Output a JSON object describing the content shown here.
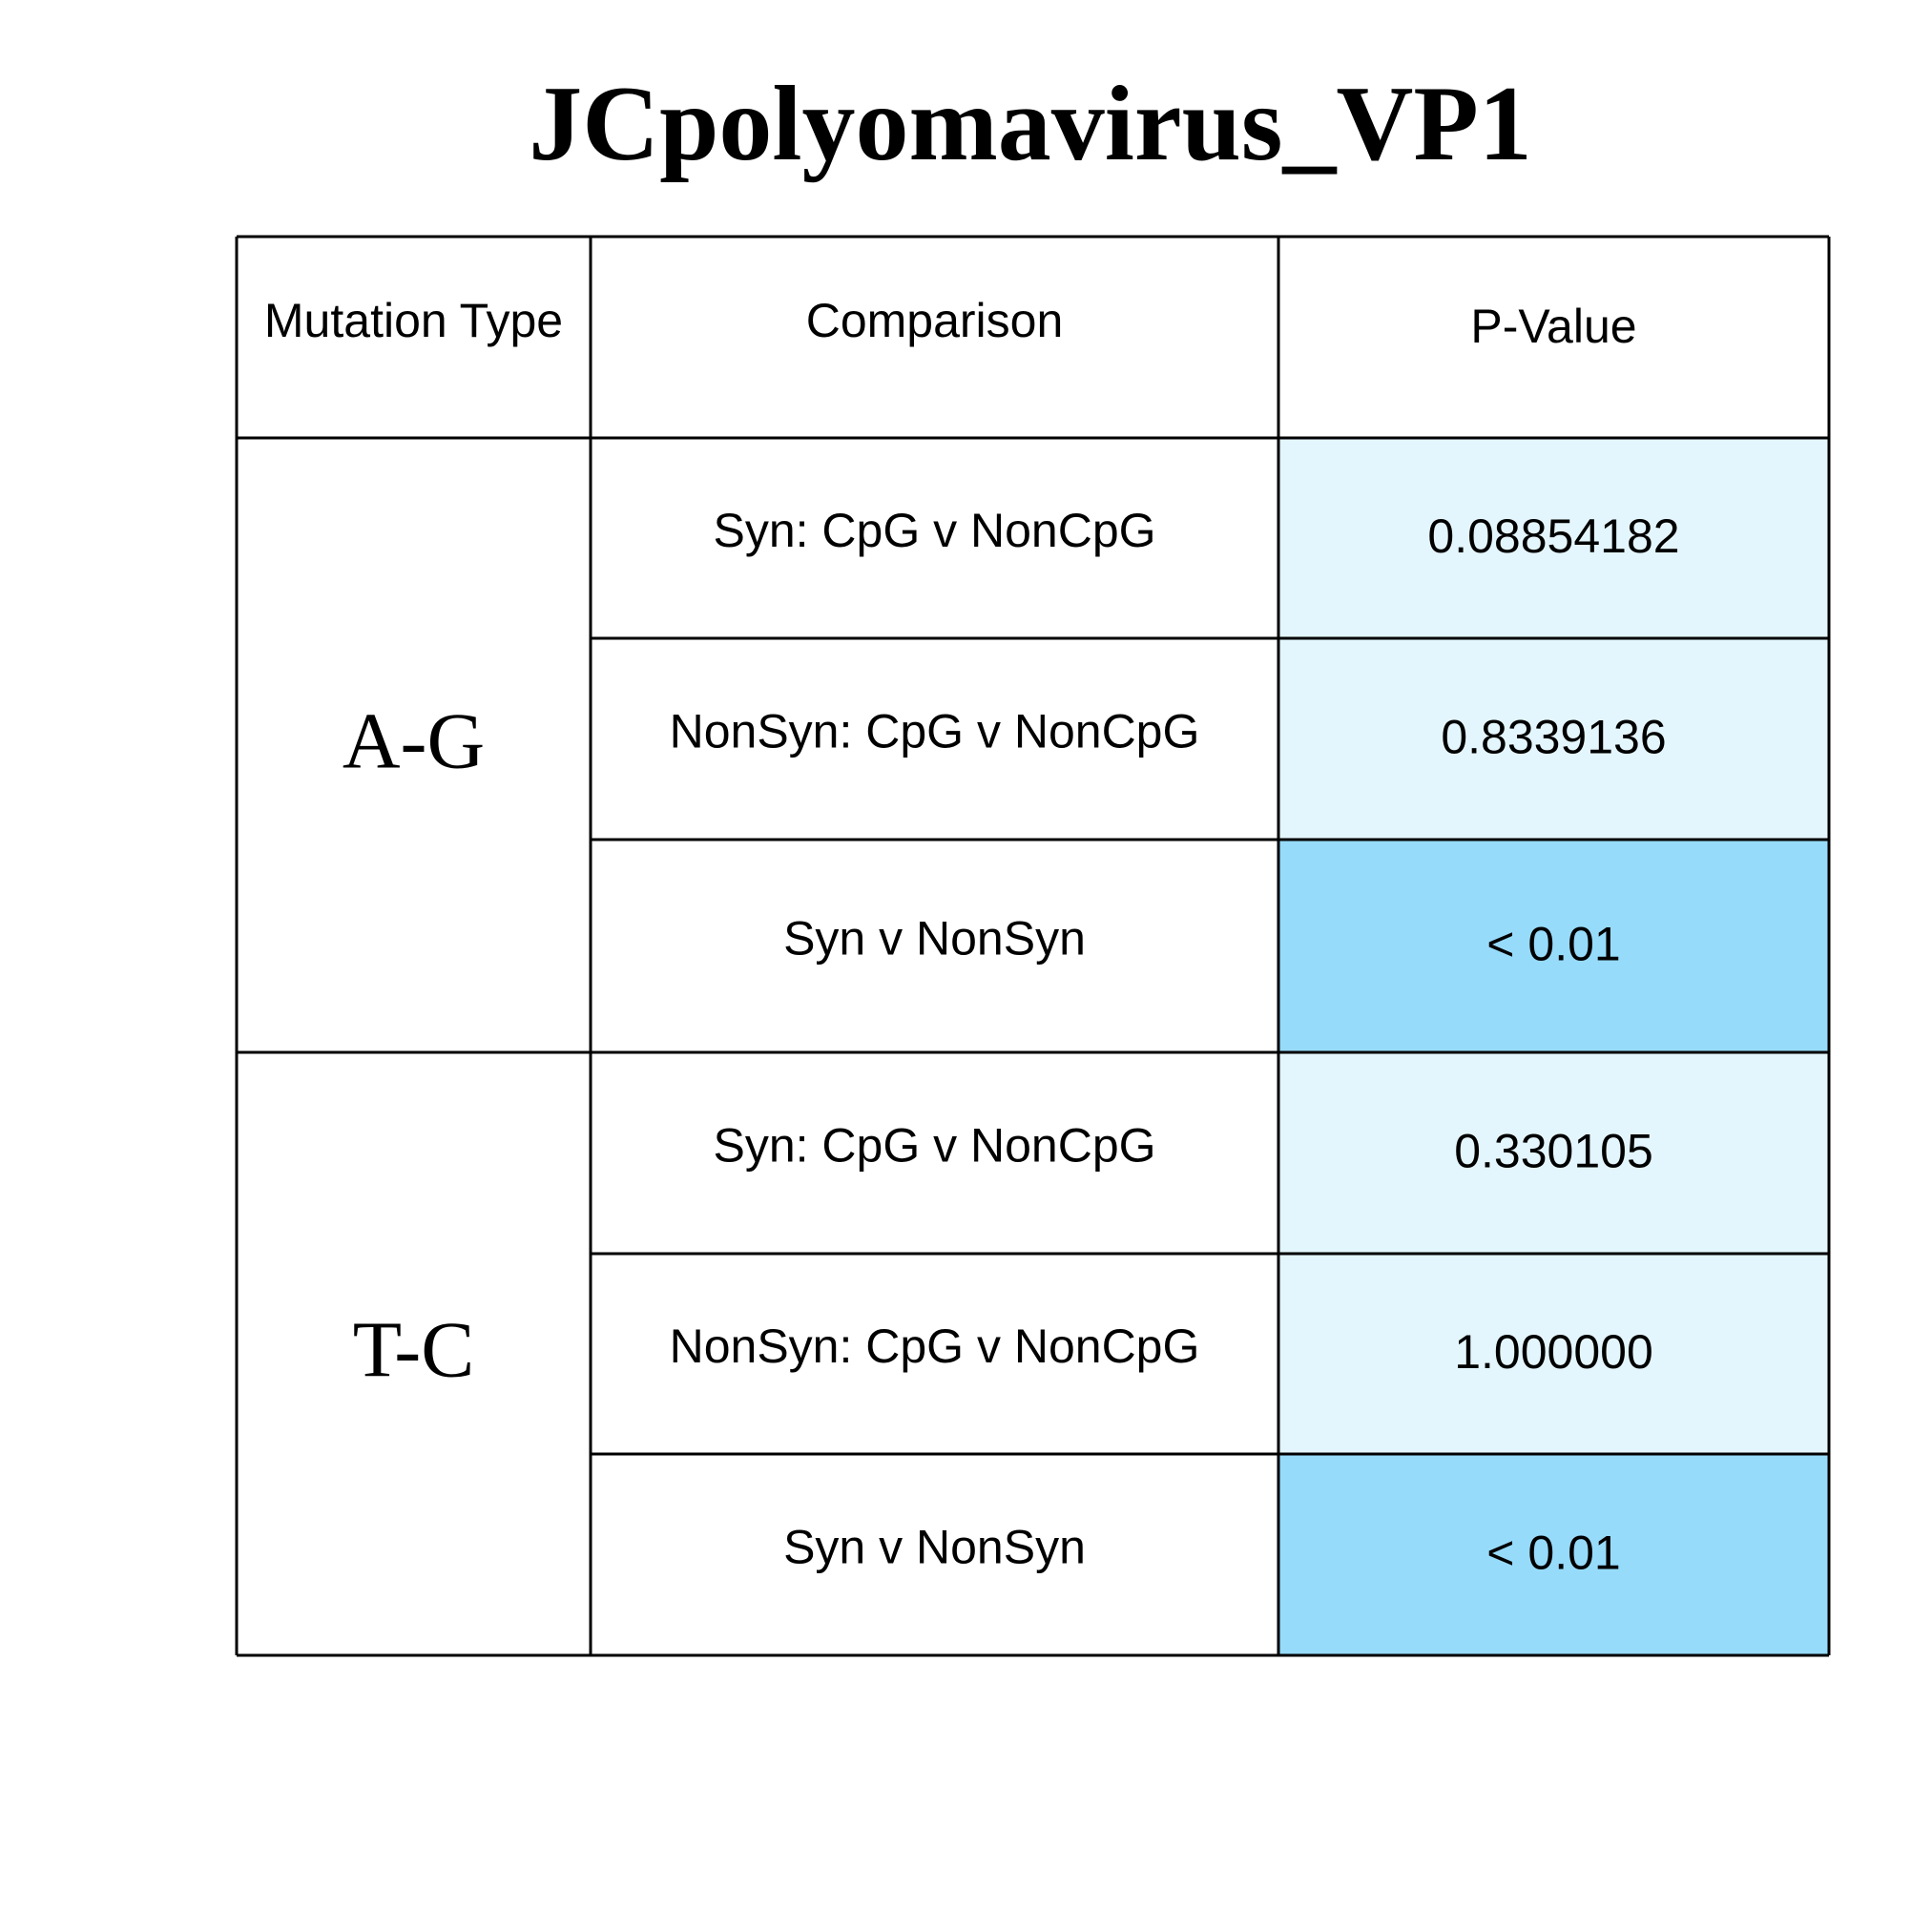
{
  "chart_data": {
    "type": "table",
    "title": "JCpolyomavirus_VP1",
    "columns": [
      "Mutation Type",
      "Comparison",
      "P-Value"
    ],
    "groups": [
      {
        "label": "A-G",
        "rows": [
          {
            "comparison": "Syn: CpG v NonCpG",
            "p_value": "0.08854182",
            "significant": false
          },
          {
            "comparison": "NonSyn: CpG v NonCpG",
            "p_value": "0.8339136",
            "significant": false
          },
          {
            "comparison": "Syn v NonSyn",
            "p_value": "< 0.01",
            "significant": true
          }
        ]
      },
      {
        "label": "T-C",
        "rows": [
          {
            "comparison": "Syn: CpG v NonCpG",
            "p_value": "0.330105",
            "significant": false
          },
          {
            "comparison": "NonSyn: CpG v NonCpG",
            "p_value": "1.000000",
            "significant": false
          },
          {
            "comparison": "Syn v NonSyn",
            "p_value": "< 0.01",
            "significant": true
          }
        ]
      }
    ],
    "colors": {
      "significant_fill": "#97dbfb",
      "nonsignificant_fill": "#e4f6fd",
      "border": "#000000",
      "background": "#ffffff"
    }
  }
}
